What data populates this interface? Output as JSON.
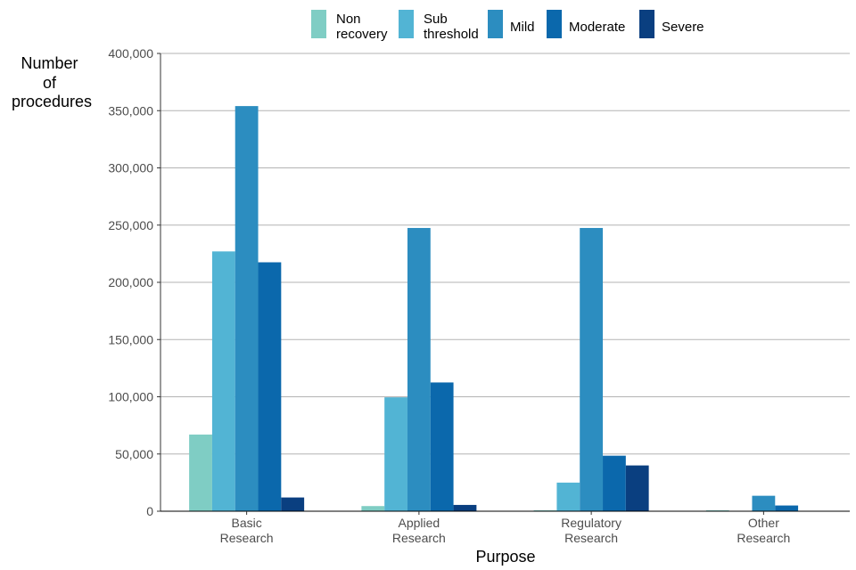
{
  "chart_data": {
    "type": "bar",
    "title": "",
    "xlabel": "Purpose",
    "ylabel": "Number of procedures",
    "ylabel_lines": [
      "Number",
      "of",
      "procedures"
    ],
    "ylim": [
      0,
      400000
    ],
    "yticks": [
      0,
      50000,
      100000,
      150000,
      200000,
      250000,
      300000,
      350000,
      400000
    ],
    "ytick_labels": [
      "0",
      "50,000",
      "100,000",
      "150,000",
      "200,000",
      "250,000",
      "300,000",
      "350,000",
      "400,000"
    ],
    "grid": true,
    "legend_position": "top",
    "categories": [
      [
        "Basic",
        "Research"
      ],
      [
        "Applied",
        "Research"
      ],
      [
        "Regulatory",
        "Research"
      ],
      [
        "Other",
        "Research"
      ]
    ],
    "series": [
      {
        "name": "Non recovery",
        "label_lines": [
          "Non",
          "recovery"
        ],
        "color": "#7fcdc4",
        "values": [
          67000,
          4500,
          800,
          800
        ]
      },
      {
        "name": "Sub threshold",
        "label_lines": [
          "Sub",
          "threshold"
        ],
        "color": "#52b4d4",
        "values": [
          227000,
          99500,
          25000,
          300
        ]
      },
      {
        "name": "Mild",
        "label_lines": [
          "Mild"
        ],
        "color": "#2c8dc0",
        "values": [
          354000,
          247500,
          247500,
          13500
        ]
      },
      {
        "name": "Moderate",
        "label_lines": [
          "Moderate"
        ],
        "color": "#0b68ac",
        "values": [
          217500,
          112500,
          48500,
          5000
        ]
      },
      {
        "name": "Severe",
        "label_lines": [
          "Severe"
        ],
        "color": "#0a3f80",
        "values": [
          12000,
          5500,
          40000,
          0
        ]
      }
    ]
  }
}
